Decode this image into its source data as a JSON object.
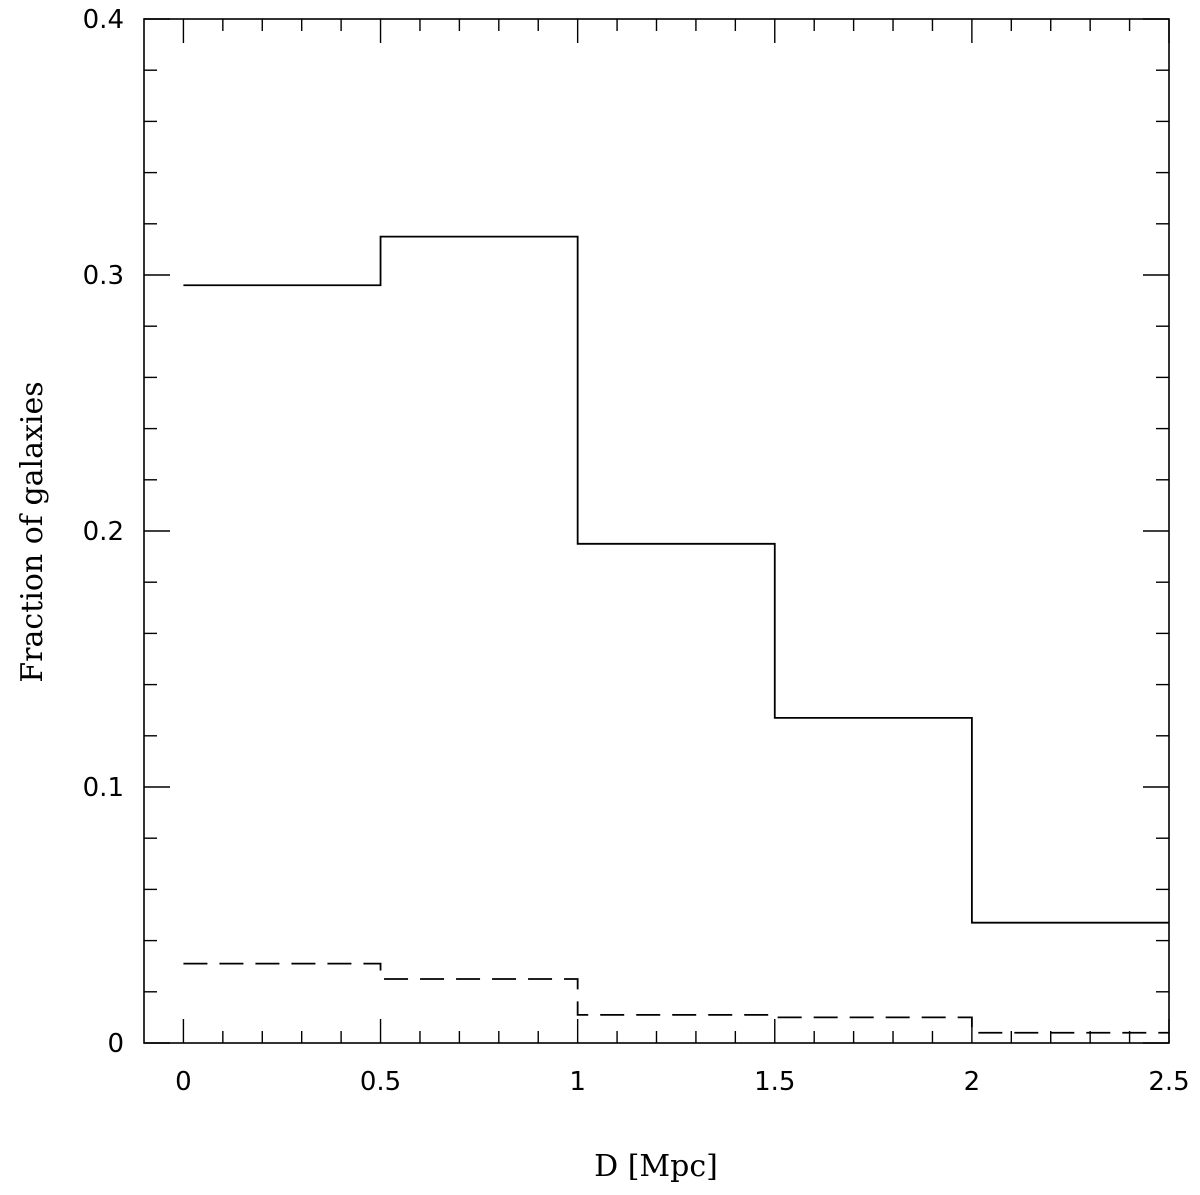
{
  "chart_data": {
    "type": "line",
    "step": "post",
    "xlabel": "D [Mpc]",
    "ylabel": "Fraction of galaxies",
    "xlim": [
      -0.1,
      2.5
    ],
    "ylim": [
      0,
      0.4
    ],
    "xticks": [
      0,
      0.5,
      1,
      1.5,
      2,
      2.5
    ],
    "xtick_labels": [
      "0",
      "0.5",
      "1",
      "1.5",
      "2",
      "2.5"
    ],
    "yticks": [
      0,
      0.1,
      0.2,
      0.3,
      0.4
    ],
    "ytick_labels": [
      "0",
      "0.1",
      "0.2",
      "0.3",
      "0.4"
    ],
    "x_minor_step": 0.1,
    "y_minor_step": 0.02,
    "grid": false,
    "bin_edges": [
      0,
      0.5,
      1,
      1.5,
      2,
      2.5
    ],
    "series": [
      {
        "style": "solid",
        "values": [
          0.296,
          0.315,
          0.195,
          0.127,
          0.047
        ]
      },
      {
        "style": "dashed",
        "values": [
          0.031,
          0.025,
          0.011,
          0.01,
          0.004
        ]
      }
    ]
  }
}
